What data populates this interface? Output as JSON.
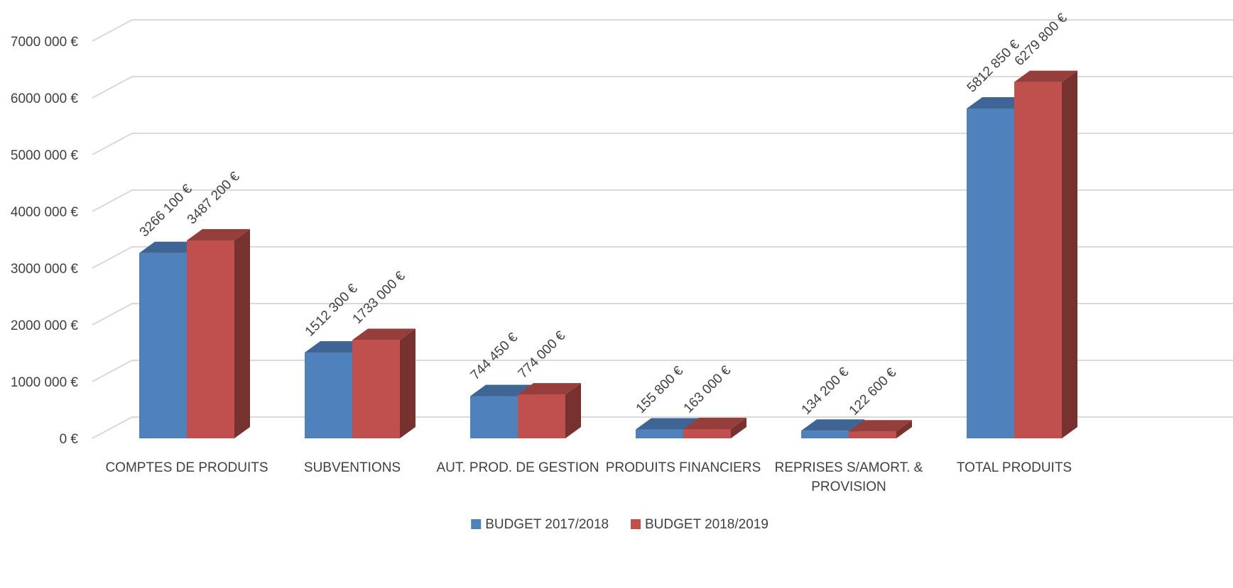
{
  "chart_data": {
    "type": "bar",
    "categories": [
      "COMPTES DE PRODUITS",
      "SUBVENTIONS",
      "AUT. PROD. DE GESTION",
      "PRODUITS FINANCIERS",
      "REPRISES S/AMORT. & PROVISION",
      "TOTAL PRODUITS"
    ],
    "series": [
      {
        "name": "BUDGET 2017/2018",
        "color": "#4F81BD",
        "values": [
          3266100,
          1512300,
          744450,
          155800,
          134200,
          5812850
        ],
        "labels": [
          "3266 100 €",
          "1512 300 €",
          "744 450 €",
          "155 800 €",
          "134 200 €",
          "5812 850 €"
        ]
      },
      {
        "name": "BUDGET 2018/2019",
        "color": "#C0504D",
        "values": [
          3487200,
          1733000,
          774000,
          163000,
          122600,
          6279800
        ],
        "labels": [
          "3487 200 €",
          "1733 000 €",
          "774 000 €",
          "163 000 €",
          "122 600 €",
          "6279 800 €"
        ]
      }
    ],
    "y_ticks": [
      0,
      1000000,
      2000000,
      3000000,
      4000000,
      5000000,
      6000000,
      7000000
    ],
    "y_tick_labels": [
      "0 €",
      "1000 000 €",
      "2000 000 €",
      "3000 000 €",
      "4000 000 €",
      "5000 000 €",
      "6000 000 €",
      "7000 000 €"
    ],
    "ylim": [
      0,
      7000000
    ],
    "title": "",
    "xlabel": "",
    "ylabel": "",
    "grid": true,
    "legend_position": "bottom",
    "style": "3d-clustered-column"
  }
}
